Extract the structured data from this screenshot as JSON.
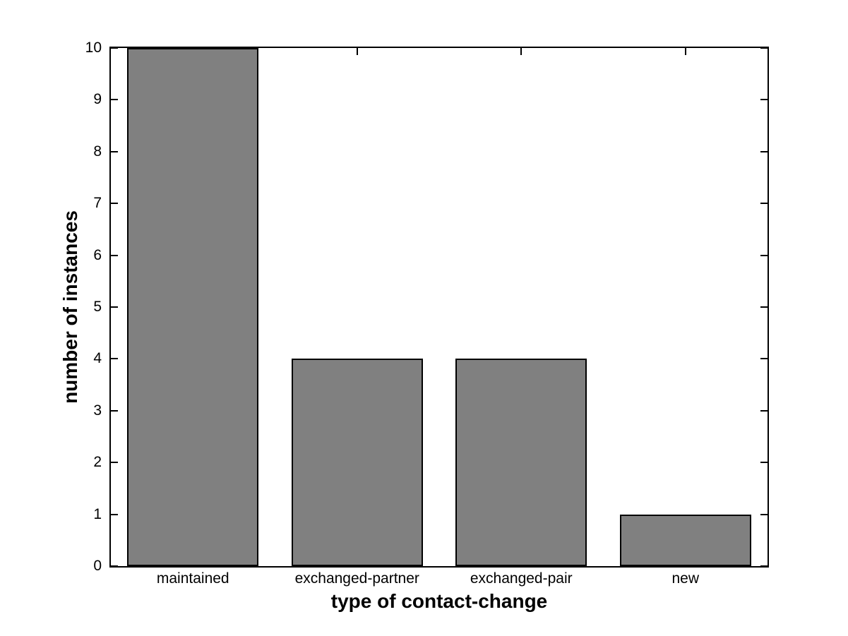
{
  "chart_data": {
    "type": "bar",
    "categories": [
      "maintained",
      "exchanged-partner",
      "exchanged-pair",
      "new"
    ],
    "values": [
      10,
      4,
      4,
      1
    ],
    "title": "",
    "xlabel": "type of contact-change",
    "ylabel": "number of instances",
    "ylim": [
      0,
      10
    ],
    "yticks": [
      0,
      1,
      2,
      3,
      4,
      5,
      6,
      7,
      8,
      9,
      10
    ],
    "bar_width_fraction": 0.8,
    "bar_fill_color": "#808080",
    "bar_edge_color": "#000000",
    "axis_color": "#000000",
    "background_color": "#ffffff",
    "grid": false,
    "legend": null
  }
}
